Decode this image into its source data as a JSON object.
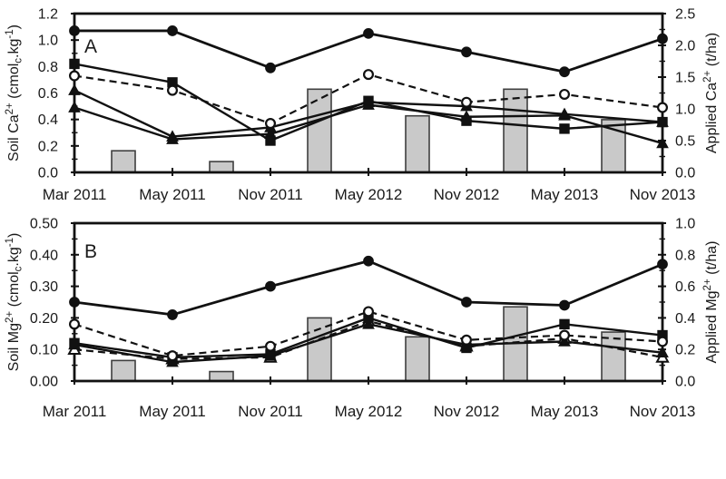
{
  "figure": {
    "background": "#ffffff",
    "line_color": "#111111",
    "text_color": "#1a1a1a",
    "bar_fill": "#c9c9c9",
    "bar_stroke": "#3f3f3f"
  },
  "x_categories": [
    "Mar 2011",
    "May 2011",
    "Nov 2011",
    "May 2012",
    "Nov 2012",
    "May 2013",
    "Nov 2013"
  ],
  "chart_data": [
    {
      "type": "line+bar",
      "panel_label": "A",
      "x_categories": [
        "Mar 2011",
        "May 2011",
        "Nov 2011",
        "May 2012",
        "Nov 2012",
        "May 2013",
        "Nov 2013"
      ],
      "left_axis": {
        "title_plain": "Soil Ca2+ (cmolc.kg-1)",
        "title_segments": [
          {
            "t": "Soil Ca"
          },
          {
            "t": "2+",
            "s": "sup"
          },
          {
            "t": " (cmol"
          },
          {
            "t": "c",
            "s": "sub"
          },
          {
            "t": ".kg"
          },
          {
            "t": "-1",
            "s": "sup"
          },
          {
            "t": ")"
          }
        ],
        "min": 0,
        "max": 1.2,
        "major_ticks": [
          "0.0",
          "0.2",
          "0.4",
          "0.6",
          "0.8",
          "1.0",
          "1.2"
        ],
        "minor_step": 0.1
      },
      "right_axis": {
        "title_plain": "Applied Ca2+ (t/ha)",
        "title_segments": [
          {
            "t": "Applied Ca"
          },
          {
            "t": "2+",
            "s": "sup"
          },
          {
            "t": " (t/ha)"
          }
        ],
        "min": 0,
        "max": 2.5,
        "major_ticks": [
          "0.0",
          "0.5",
          "1.0",
          "1.5",
          "2.0",
          "2.5"
        ],
        "minor_step": 0.25
      },
      "series": [
        {
          "name": "soil-ca-filled-circle",
          "marker": "circle",
          "fill": "filled",
          "line": "solid",
          "axis": "left",
          "values": [
            1.07,
            1.07,
            0.79,
            1.05,
            0.91,
            0.76,
            1.01
          ]
        },
        {
          "name": "soil-ca-open-circle",
          "marker": "circle",
          "fill": "open",
          "line": "dashed",
          "axis": "left",
          "values": [
            0.73,
            0.62,
            0.37,
            0.74,
            0.53,
            0.59,
            0.49
          ]
        },
        {
          "name": "soil-ca-filled-square",
          "marker": "square",
          "fill": "filled",
          "line": "solid",
          "axis": "left",
          "values": [
            0.82,
            0.68,
            0.24,
            0.54,
            0.39,
            0.33,
            0.38
          ]
        },
        {
          "name": "soil-ca-filled-triangle-1",
          "marker": "triangle",
          "fill": "filled",
          "line": "solid",
          "axis": "left",
          "values": [
            0.62,
            0.27,
            0.34,
            0.53,
            0.5,
            0.44,
            0.38
          ]
        },
        {
          "name": "soil-ca-filled-triangle-2",
          "marker": "triangle",
          "fill": "filled",
          "line": "solid",
          "axis": "left",
          "values": [
            0.49,
            0.25,
            0.29,
            0.51,
            0.42,
            0.43,
            0.22
          ]
        }
      ],
      "bars": {
        "name": "applied-ca-bars",
        "axis": "right",
        "position": "midpoint-between-consecutive-categories",
        "values": [
          0.34,
          0.17,
          1.31,
          0.89,
          1.31,
          0.83
        ]
      }
    },
    {
      "type": "line+bar",
      "panel_label": "B",
      "x_categories": [
        "Mar 2011",
        "May 2011",
        "Nov 2011",
        "May 2012",
        "Nov 2012",
        "May 2013",
        "Nov 2013"
      ],
      "left_axis": {
        "title_plain": "Soil Mg2+ (cmolc.kg-1)",
        "title_segments": [
          {
            "t": "Soil Mg"
          },
          {
            "t": "2+",
            "s": "sup"
          },
          {
            "t": " (cmol"
          },
          {
            "t": "c",
            "s": "sub"
          },
          {
            "t": ".kg"
          },
          {
            "t": "-1",
            "s": "sup"
          },
          {
            "t": ")"
          }
        ],
        "min": 0,
        "max": 0.5,
        "major_ticks": [
          "0.00",
          "0.10",
          "0.20",
          "0.30",
          "0.40",
          "0.50"
        ],
        "minor_step": 0.05
      },
      "right_axis": {
        "title_plain": "Applied Mg2+ (t/ha)",
        "title_segments": [
          {
            "t": "Applied Mg"
          },
          {
            "t": "2+",
            "s": "sup"
          },
          {
            "t": " (t/ha)"
          }
        ],
        "min": 0,
        "max": 1.0,
        "major_ticks": [
          "0.0",
          "0.2",
          "0.4",
          "0.6",
          "0.8",
          "1.0"
        ],
        "minor_step": 0.1
      },
      "series": [
        {
          "name": "soil-mg-filled-circle",
          "marker": "circle",
          "fill": "filled",
          "line": "solid",
          "axis": "left",
          "values": [
            0.25,
            0.21,
            0.3,
            0.38,
            0.25,
            0.24,
            0.37
          ]
        },
        {
          "name": "soil-mg-open-circle",
          "marker": "circle",
          "fill": "open",
          "line": "dashed",
          "axis": "left",
          "values": [
            0.18,
            0.08,
            0.11,
            0.22,
            0.13,
            0.145,
            0.125
          ]
        },
        {
          "name": "soil-mg-filled-square",
          "marker": "square",
          "fill": "filled",
          "line": "solid",
          "axis": "left",
          "values": [
            0.12,
            0.075,
            0.085,
            0.2,
            0.105,
            0.18,
            0.145
          ]
        },
        {
          "name": "soil-mg-filled-triangle",
          "marker": "triangle",
          "fill": "filled",
          "line": "solid",
          "axis": "left",
          "values": [
            0.115,
            0.06,
            0.08,
            0.18,
            0.115,
            0.125,
            0.09
          ]
        },
        {
          "name": "soil-mg-open-triangle",
          "marker": "triangle",
          "fill": "open",
          "line": "dashed",
          "axis": "left",
          "values": [
            0.1,
            0.07,
            0.075,
            0.19,
            0.11,
            0.135,
            0.075
          ]
        }
      ],
      "bars": {
        "name": "applied-mg-bars",
        "axis": "right",
        "position": "midpoint-between-consecutive-categories",
        "values": [
          0.13,
          0.06,
          0.4,
          0.28,
          0.47,
          0.31
        ]
      }
    }
  ]
}
